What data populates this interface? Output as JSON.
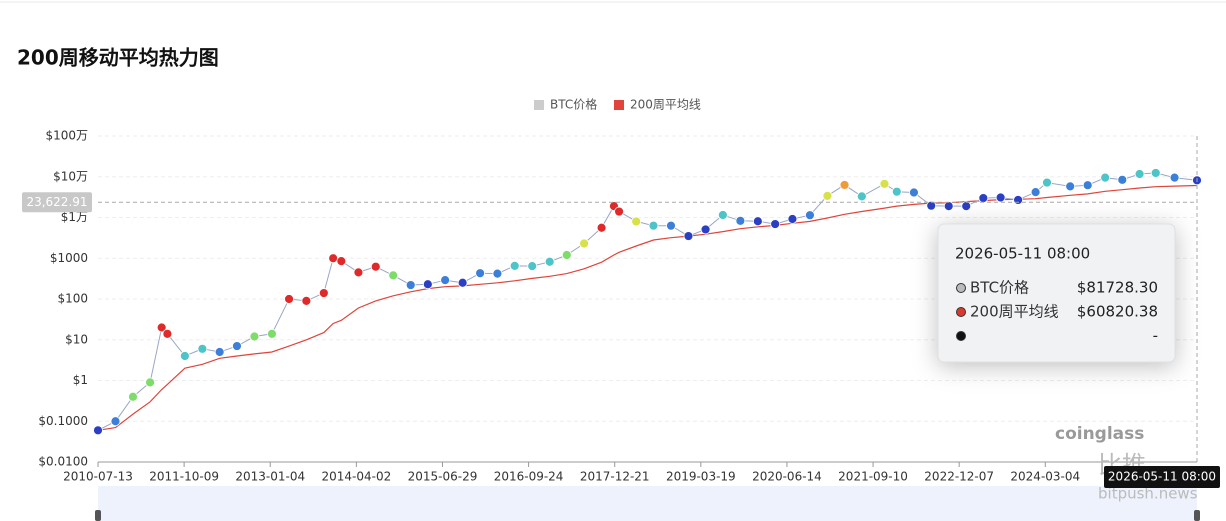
{
  "chart_data": {
    "type": "line",
    "title": "200周移动平均热力图",
    "log_scale": true,
    "grid": true,
    "legend": "top",
    "x": [
      "2010-07-13",
      "2010-10-13",
      "2011-01-13",
      "2011-04-13",
      "2011-06-13",
      "2011-07-13",
      "2011-10-13",
      "2012-01-13",
      "2012-04-13",
      "2012-07-13",
      "2012-10-13",
      "2013-01-13",
      "2013-04-13",
      "2013-07-13",
      "2013-10-13",
      "2013-12-01",
      "2014-01-13",
      "2014-04-13",
      "2014-07-13",
      "2014-10-13",
      "2015-01-13",
      "2015-04-13",
      "2015-07-13",
      "2015-10-13",
      "2016-01-13",
      "2016-04-13",
      "2016-07-13",
      "2016-10-13",
      "2017-01-13",
      "2017-04-13",
      "2017-07-13",
      "2017-10-13",
      "2017-12-17",
      "2018-01-13",
      "2018-04-13",
      "2018-07-13",
      "2018-10-13",
      "2019-01-13",
      "2019-04-13",
      "2019-07-13",
      "2019-10-13",
      "2020-01-13",
      "2020-04-13",
      "2020-07-13",
      "2020-10-13",
      "2021-01-13",
      "2021-04-13",
      "2021-07-13",
      "2021-11-09",
      "2022-01-13",
      "2022-04-13",
      "2022-07-13",
      "2022-10-13",
      "2023-01-13",
      "2023-04-13",
      "2023-07-13",
      "2023-10-13",
      "2024-01-13",
      "2024-03-13",
      "2024-07-13",
      "2024-10-13",
      "2025-01-13",
      "2025-04-13",
      "2025-07-13",
      "2025-10-06",
      "2026-01-13",
      "2026-05-11"
    ],
    "series": [
      {
        "name": "BTC价格",
        "color": "#cccccc",
        "values": [
          0.06,
          0.1,
          0.4,
          0.9,
          20,
          14,
          4,
          6,
          5,
          7,
          12,
          14,
          100,
          90,
          140,
          1000,
          850,
          450,
          620,
          380,
          220,
          230,
          290,
          250,
          430,
          420,
          650,
          640,
          820,
          1200,
          2300,
          5600,
          19000,
          14000,
          8000,
          6300,
          6300,
          3500,
          5100,
          11500,
          8300,
          8100,
          6900,
          9200,
          11400,
          34000,
          63000,
          33000,
          67000,
          43000,
          41000,
          19500,
          19000,
          19000,
          30000,
          31000,
          27000,
          42000,
          72000,
          58000,
          62000,
          95000,
          84000,
          117000,
          124000,
          95000,
          81728.3
        ]
      },
      {
        "name": "200周平均线",
        "color": "#e0443a",
        "values": [
          0.06,
          0.07,
          0.15,
          0.3,
          0.6,
          0.8,
          2,
          2.5,
          3.5,
          4,
          4.5,
          5,
          7,
          10,
          15,
          25,
          30,
          60,
          90,
          120,
          150,
          180,
          200,
          210,
          230,
          250,
          280,
          320,
          360,
          420,
          550,
          800,
          1200,
          1400,
          2000,
          2800,
          3200,
          3500,
          3900,
          4500,
          5300,
          5900,
          6400,
          7200,
          8000,
          9700,
          12000,
          14000,
          17000,
          19000,
          21000,
          22500,
          23000,
          24500,
          26000,
          27500,
          28000,
          29000,
          31000,
          35000,
          38000,
          44000,
          48000,
          53000,
          57000,
          59000,
          60820.38
        ]
      }
    ],
    "xlim": [
      "2010-07-13",
      "2026-05-11"
    ],
    "xticks": [
      "2010-07-13",
      "2011-10-09",
      "2013-01-04",
      "2014-04-02",
      "2015-06-29",
      "2016-09-24",
      "2017-12-21",
      "2019-03-19",
      "2020-06-14",
      "2021-09-10",
      "2022-12-07",
      "2024-03-04"
    ],
    "ylim": [
      0.01,
      1000000
    ],
    "yticks": [
      {
        "value": 0.01,
        "label": "$0.0100"
      },
      {
        "value": 0.1,
        "label": "$0.1000"
      },
      {
        "value": 1,
        "label": "$1"
      },
      {
        "value": 10,
        "label": "$10"
      },
      {
        "value": 100,
        "label": "$100"
      },
      {
        "value": 1000,
        "label": "$1000"
      },
      {
        "value": 10000,
        "label": "$1万"
      },
      {
        "value": 100000,
        "label": "$10万"
      },
      {
        "value": 1000000,
        "label": "$100万"
      }
    ],
    "crosshair": {
      "y": {
        "value": 23622.91,
        "label": "23,622.91"
      },
      "x_label": "2026-05-11 08:00"
    },
    "tooltip": {
      "title": "2026-05-11 08:00",
      "value_labels": [
        "$81728.30",
        "$60820.38",
        "-"
      ]
    },
    "watermarks": [
      "coinglass",
      "比推",
      "bitpush.news"
    ]
  }
}
